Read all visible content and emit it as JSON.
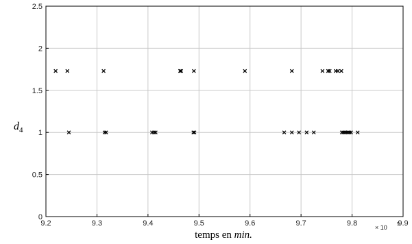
{
  "chart_data": {
    "type": "scatter",
    "title": "",
    "xlabel_prefix": "temps en ",
    "xlabel_italic": "min.",
    "ylabel_main": "d",
    "ylabel_sub": "4",
    "x_multiplier": "× 10",
    "x_exponent": "5",
    "xlim": [
      9.2,
      9.9
    ],
    "ylim": [
      0,
      2.5
    ],
    "xticks": [
      "9.2",
      "9.3",
      "9.4",
      "9.5",
      "9.6",
      "9.7",
      "9.8",
      "9.9"
    ],
    "yticks": [
      "0",
      "0.5",
      "1",
      "1.5",
      "2",
      "2.5"
    ],
    "grid": true,
    "marker": "x",
    "marker_color": "#000000",
    "grid_color": "#c8c8c8",
    "series": [
      {
        "points": [
          [
            9.219,
            1.73
          ],
          [
            9.242,
            1.73
          ],
          [
            9.313,
            1.73
          ],
          [
            9.463,
            1.73
          ],
          [
            9.465,
            1.73
          ],
          [
            9.49,
            1.73
          ],
          [
            9.59,
            1.73
          ],
          [
            9.682,
            1.73
          ],
          [
            9.742,
            1.73
          ],
          [
            9.753,
            1.73
          ],
          [
            9.756,
            1.73
          ],
          [
            9.768,
            1.73
          ],
          [
            9.772,
            1.73
          ],
          [
            9.779,
            1.73
          ],
          [
            9.245,
            1.0
          ],
          [
            9.315,
            1.0
          ],
          [
            9.318,
            1.0
          ],
          [
            9.408,
            1.0
          ],
          [
            9.412,
            1.0
          ],
          [
            9.415,
            1.0
          ],
          [
            9.489,
            1.0
          ],
          [
            9.491,
            1.0
          ],
          [
            9.667,
            1.0
          ],
          [
            9.682,
            1.0
          ],
          [
            9.696,
            1.0
          ],
          [
            9.711,
            1.0
          ],
          [
            9.725,
            1.0
          ],
          [
            9.78,
            1.0
          ],
          [
            9.783,
            1.0
          ],
          [
            9.786,
            1.0
          ],
          [
            9.789,
            1.0
          ],
          [
            9.792,
            1.0
          ],
          [
            9.795,
            1.0
          ],
          [
            9.798,
            1.0
          ],
          [
            9.811,
            1.0
          ]
        ]
      }
    ]
  }
}
